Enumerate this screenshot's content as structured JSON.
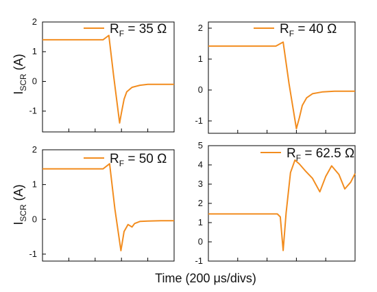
{
  "figure": {
    "xlabel": "Time (200 μs/divs)",
    "ylabel_main": "I",
    "ylabel_sub": "SCR",
    "ylabel_unit": " (A)"
  },
  "colors": {
    "trace": "#f28c1e",
    "axis": "#000000"
  },
  "chart_data": [
    {
      "type": "line",
      "legend": {
        "prefix": "R",
        "sub": "F",
        "text": " = 35 Ω"
      },
      "ylim": [
        -1.7,
        2.0
      ],
      "yticks": [
        "2",
        "1",
        "0",
        "-1"
      ],
      "ytick_values": [
        2,
        1,
        0,
        -1
      ],
      "xlim": [
        0,
        5
      ],
      "xticks_count": 5,
      "grid": false,
      "series": [
        {
          "x": [
            0,
            1.5,
            2.3,
            2.52,
            2.7,
            2.93,
            3.0,
            3.1,
            3.2,
            3.4,
            3.7,
            4.0,
            4.4,
            4.8,
            5.0
          ],
          "values": [
            1.4,
            1.4,
            1.4,
            1.55,
            0.2,
            -1.4,
            -1.05,
            -0.6,
            -0.35,
            -0.2,
            -0.13,
            -0.1,
            -0.1,
            -0.1,
            -0.1
          ]
        }
      ]
    },
    {
      "type": "line",
      "legend": {
        "prefix": "R",
        "sub": "F",
        "text": " = 40 Ω"
      },
      "ylim": [
        -1.4,
        2.2
      ],
      "yticks": [
        "2",
        "1",
        "0",
        "-1"
      ],
      "ytick_values": [
        2,
        1,
        0,
        -1
      ],
      "xlim": [
        0,
        5
      ],
      "xticks_count": 5,
      "grid": false,
      "series": [
        {
          "x": [
            0,
            1.5,
            2.3,
            2.55,
            2.75,
            3.0,
            3.1,
            3.2,
            3.35,
            3.55,
            3.9,
            4.3,
            4.8,
            5.0
          ],
          "values": [
            1.42,
            1.42,
            1.42,
            1.55,
            0.2,
            -1.25,
            -0.9,
            -0.5,
            -0.25,
            -0.12,
            -0.06,
            -0.04,
            -0.04,
            -0.04
          ]
        }
      ]
    },
    {
      "type": "line",
      "legend": {
        "prefix": "R",
        "sub": "F",
        "text": " = 50 Ω"
      },
      "ylim": [
        -1.2,
        2.0
      ],
      "yticks": [
        "2",
        "1",
        "0",
        "-1"
      ],
      "ytick_values": [
        2,
        1,
        0,
        -1
      ],
      "xlim": [
        0,
        5
      ],
      "xticks_count": 5,
      "grid": false,
      "series": [
        {
          "x": [
            0,
            1.5,
            2.3,
            2.55,
            2.75,
            2.98,
            3.1,
            3.25,
            3.4,
            3.5,
            3.7,
            4.0,
            4.5,
            5.0
          ],
          "values": [
            1.45,
            1.45,
            1.45,
            1.6,
            0.3,
            -0.9,
            -0.35,
            -0.15,
            -0.22,
            -0.12,
            -0.06,
            -0.05,
            -0.04,
            -0.04
          ]
        }
      ]
    },
    {
      "type": "line",
      "legend": {
        "prefix": "R",
        "sub": "F",
        "text": " = 62.5 Ω"
      },
      "ylim": [
        -1.0,
        5.0
      ],
      "yticks": [
        "5",
        "4",
        "3",
        "2",
        "1",
        "0",
        "-1"
      ],
      "ytick_values": [
        5,
        4,
        3,
        2,
        1,
        0,
        -1
      ],
      "xlim": [
        0,
        5
      ],
      "xticks_count": 5,
      "grid": false,
      "series": [
        {
          "x": [
            0,
            1.5,
            2.35,
            2.45,
            2.55,
            2.65,
            2.8,
            2.95,
            3.1,
            3.3,
            3.55,
            3.8,
            4.0,
            4.2,
            4.45,
            4.65,
            4.85,
            5.0
          ],
          "values": [
            1.45,
            1.45,
            1.45,
            1.3,
            -0.45,
            1.5,
            3.6,
            4.25,
            4.05,
            3.7,
            3.3,
            2.6,
            3.4,
            3.95,
            3.5,
            2.75,
            3.1,
            3.55
          ]
        }
      ]
    }
  ]
}
